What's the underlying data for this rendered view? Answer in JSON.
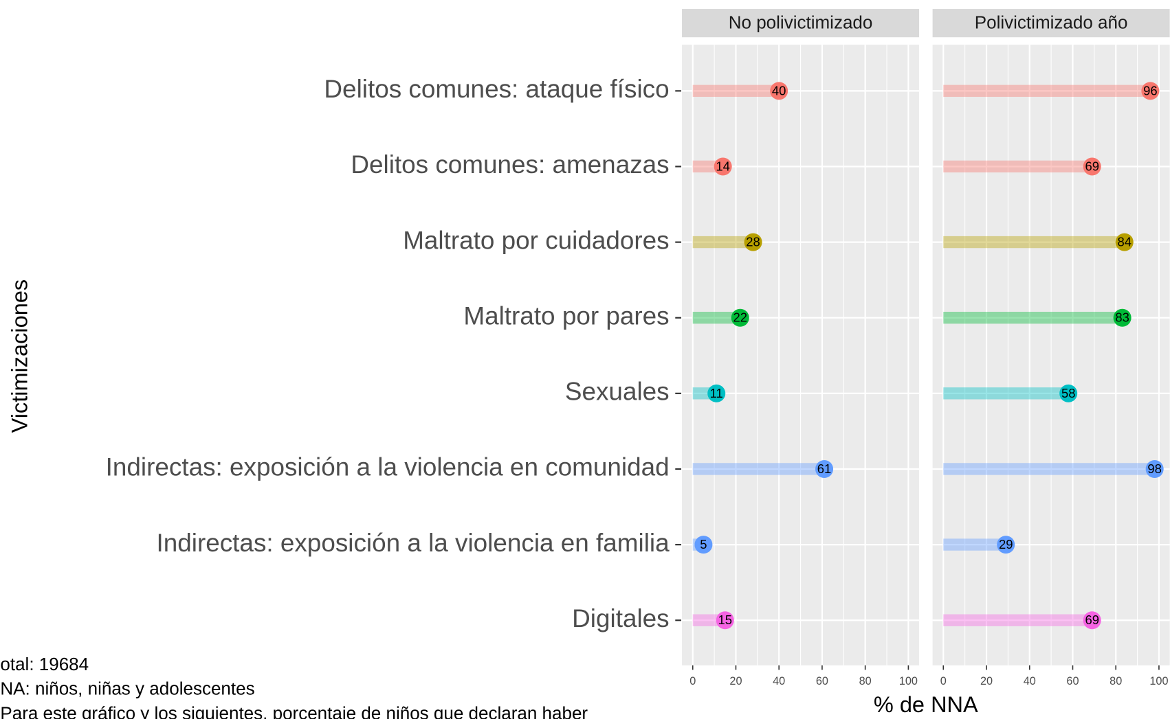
{
  "chart_data": {
    "type": "lollipop",
    "categories": [
      "Delitos comunes: ataque físico",
      "Delitos comunes: amenazas",
      "Maltrato por cuidadores",
      "Maltrato por pares",
      "Sexuales",
      "Indirectas: exposición a la violencia en comunidad",
      "Indirectas: exposición a la violencia en familia",
      "Digitales"
    ],
    "colors": [
      "#F8766D",
      "#F8766D",
      "#B79F00",
      "#00BA38",
      "#00BFC4",
      "#619CFF",
      "#619CFF",
      "#F564E3"
    ],
    "panels": [
      {
        "title": "No polivictimizado",
        "values": [
          40,
          14,
          28,
          22,
          11,
          61,
          5,
          15
        ]
      },
      {
        "title": "Polivictimizado año",
        "values": [
          96,
          69,
          84,
          83,
          58,
          98,
          29,
          69
        ]
      }
    ],
    "xlim": [
      -5,
      105
    ],
    "xticks": [
      0,
      20,
      40,
      60,
      80,
      100
    ],
    "grid": true,
    "x_label": "% de NNA",
    "y_label": "Victimizaciones",
    "notes": [
      "otal: 19684",
      "NA: niños, niñas y adolescentes",
      "Para este gráfico y los siguientes, porcentaje de niños que declaran haber"
    ]
  }
}
